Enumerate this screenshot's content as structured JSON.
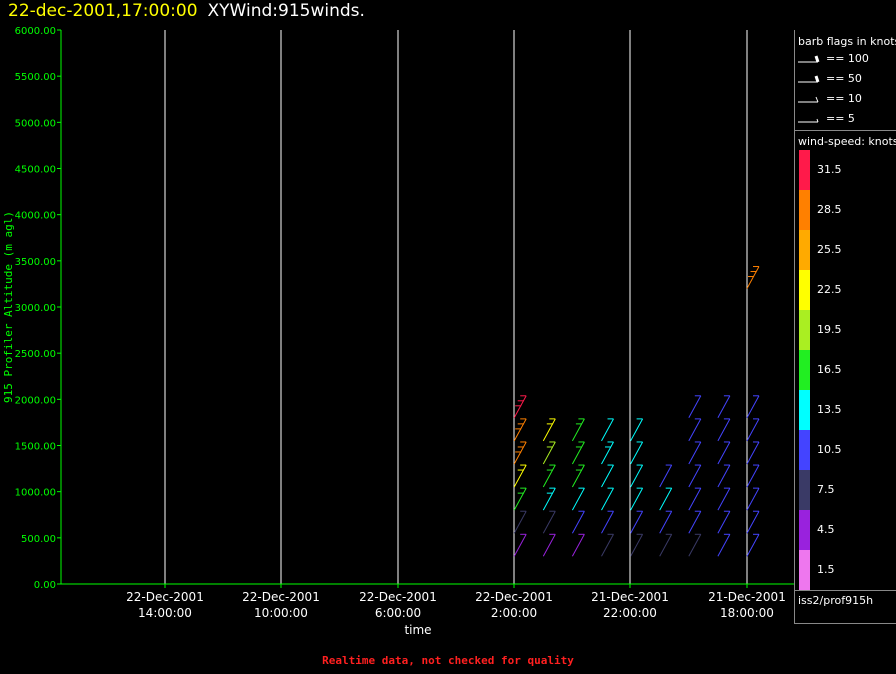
{
  "header": {
    "date": "22-dec-2001,17:00:00",
    "title": "XYWind:915winds."
  },
  "footer": {
    "note": "Realtime data, not checked for quality"
  },
  "colors": {
    "axis": "#00ff00",
    "grid": "#ffffff",
    "text": "#ffffff",
    "header_date": "#ffff00",
    "footer": "#ff2020"
  },
  "legend": {
    "barb_title": "barb flags in knots",
    "barbs": [
      {
        "label": "== 100",
        "knots": 100
      },
      {
        "label": "== 50",
        "knots": 50
      },
      {
        "label": "== 10",
        "knots": 10
      },
      {
        "label": "== 5",
        "knots": 5
      }
    ],
    "speed_title": "wind-speed: knots",
    "colorbar": [
      {
        "label": "31.5",
        "color": "#ff1a4a"
      },
      {
        "label": "28.5",
        "color": "#ff8000"
      },
      {
        "label": "25.5",
        "color": "#ffaa00"
      },
      {
        "label": "22.5",
        "color": "#ffff00"
      },
      {
        "label": "19.5",
        "color": "#aaee22"
      },
      {
        "label": "16.5",
        "color": "#22ee22"
      },
      {
        "label": "13.5",
        "color": "#00ffff"
      },
      {
        "label": "10.5",
        "color": "#4444ff"
      },
      {
        "label": "7.5",
        "color": "#3a3a66"
      },
      {
        "label": "4.5",
        "color": "#9922dd"
      },
      {
        "label": "1.5",
        "color": "#ee77ee"
      }
    ],
    "source": "iss2/prof915h"
  },
  "chart_data": {
    "type": "scatter",
    "title": "XYWind:915winds.",
    "xlabel": "time",
    "ylabel": "915 Profiler Altitude (m agl)",
    "ylim": [
      0,
      6000
    ],
    "x_axis_direction": "time decreases to the right",
    "grid": "vertical lines at time ticks",
    "y_ticks": [
      "0.00",
      "500.00",
      "1000.00",
      "1500.00",
      "2000.00",
      "2500.00",
      "3000.00",
      "3500.00",
      "4000.00",
      "4500.00",
      "5000.00",
      "5500.00",
      "6000.00"
    ],
    "x_ticks": [
      {
        "date": "22-Dec-2001",
        "time": "14:00:00"
      },
      {
        "date": "22-Dec-2001",
        "time": "10:00:00"
      },
      {
        "date": "22-Dec-2001",
        "time": "6:00:00"
      },
      {
        "date": "22-Dec-2001",
        "time": "2:00:00"
      },
      {
        "date": "21-Dec-2001",
        "time": "22:00:00"
      },
      {
        "date": "21-Dec-2001",
        "time": "18:00:00"
      }
    ],
    "series": [
      {
        "x_time": "22-Dec-2001 2:00",
        "altitudes": [
          300,
          550,
          800,
          1050,
          1300,
          1550,
          1800
        ],
        "speed_knots": [
          4,
          8,
          16,
          22,
          28,
          30,
          31
        ]
      },
      {
        "x_time": "22-Dec-2001 1:00",
        "altitudes": [
          300,
          550,
          800,
          1050,
          1300,
          1550
        ],
        "speed_knots": [
          5,
          9,
          15,
          18,
          20,
          22
        ]
      },
      {
        "x_time": "22-Dec-2001 0:00",
        "altitudes": [
          300,
          550,
          800,
          1050,
          1300,
          1550
        ],
        "speed_knots": [
          6,
          10,
          14,
          16,
          17,
          17
        ]
      },
      {
        "x_time": "21-Dec-2001 23:00",
        "altitudes": [
          300,
          550,
          800,
          1050,
          1300,
          1550
        ],
        "speed_knots": [
          7,
          11,
          13,
          14,
          15,
          14
        ]
      },
      {
        "x_time": "21-Dec-2001 22:00",
        "altitudes": [
          300,
          550,
          800,
          1050,
          1300,
          1550
        ],
        "speed_knots": [
          7,
          11,
          13,
          13,
          14,
          14
        ]
      },
      {
        "x_time": "21-Dec-2001 21:00",
        "altitudes": [
          300,
          550,
          800,
          1050
        ],
        "speed_knots": [
          8,
          12,
          13,
          12
        ]
      },
      {
        "x_time": "21-Dec-2001 20:00",
        "altitudes": [
          300,
          550,
          800,
          1050,
          1300,
          1550,
          1800
        ],
        "speed_knots": [
          9,
          12,
          10,
          10,
          10,
          11,
          12
        ]
      },
      {
        "x_time": "21-Dec-2001 19:00",
        "altitudes": [
          300,
          550,
          800,
          1050,
          1300,
          1550,
          1800
        ],
        "speed_knots": [
          10,
          11,
          10,
          10,
          10,
          10,
          11
        ]
      },
      {
        "x_time": "21-Dec-2001 18:00",
        "altitudes": [
          300,
          550,
          800,
          1050,
          1300,
          1550,
          1800,
          3200
        ],
        "speed_knots": [
          10,
          11,
          10,
          10,
          10,
          10,
          11,
          30
        ]
      }
    ]
  }
}
